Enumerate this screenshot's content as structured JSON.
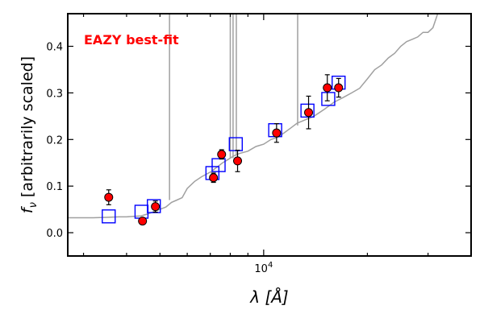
{
  "chart_data": {
    "type": "scatter",
    "title": "",
    "annotation": {
      "text": "EAZY best-fit",
      "color": "#ff0000"
    },
    "xlabel": "λ [Å]",
    "ylabel": "f_ν [arbitrarily scaled]",
    "x_scale": "log",
    "xlim": [
      2700,
      40000
    ],
    "ylim": [
      -0.05,
      0.47
    ],
    "x_tick_labels": [
      {
        "value": 10000,
        "label": "10^4"
      }
    ],
    "y_ticks": [
      0.0,
      0.1,
      0.2,
      0.3,
      0.4
    ],
    "y_tick_labels": [
      "0.0",
      "0.1",
      "0.2",
      "0.3",
      "0.4"
    ],
    "grid": false,
    "colors": {
      "sed": "#a0a0a0",
      "model": "#0000ff",
      "observed": "#ff0000",
      "axes": "#000000"
    },
    "series": [
      {
        "name": "",
        "kind": "line",
        "description_color": "gray",
        "x": [
          2700,
          3200,
          3500,
          3800,
          4000,
          4200,
          4400,
          4600,
          4800,
          5000,
          5200,
          5300,
          5400,
          5600,
          5800,
          6000,
          6300,
          6600,
          7000,
          7300,
          7600,
          7800,
          8000,
          8200,
          8500,
          9000,
          9500,
          10000,
          10500,
          11000,
          11500,
          12000,
          12500,
          13000,
          14000,
          15000,
          16000,
          17000,
          18000,
          19000,
          20000,
          21000,
          22000,
          23000,
          24000,
          25000,
          26000,
          27000,
          28000,
          29000,
          30000,
          31000,
          32000
        ],
        "y": [
          0.032,
          0.032,
          0.033,
          0.034,
          0.034,
          0.035,
          0.036,
          0.04,
          0.045,
          0.05,
          0.055,
          0.06,
          0.065,
          0.07,
          0.075,
          0.095,
          0.11,
          0.12,
          0.13,
          0.14,
          0.15,
          0.155,
          0.16,
          0.165,
          0.17,
          0.175,
          0.185,
          0.19,
          0.2,
          0.205,
          0.215,
          0.225,
          0.235,
          0.24,
          0.25,
          0.265,
          0.28,
          0.29,
          0.3,
          0.31,
          0.33,
          0.35,
          0.36,
          0.375,
          0.385,
          0.4,
          0.41,
          0.415,
          0.42,
          0.43,
          0.43,
          0.44,
          0.47
        ]
      },
      {
        "name": "",
        "kind": "spikes",
        "description_color": "gray",
        "x": [
          5330,
          8000,
          8150,
          8330,
          12550
        ],
        "y_base": [
          0.07,
          0.16,
          0.16,
          0.165,
          0.23
        ]
      },
      {
        "name": "",
        "kind": "open-squares",
        "description_color": "blue",
        "x": [
          3550,
          4420,
          4800,
          7100,
          7400,
          8300,
          10800,
          13400,
          15400,
          16500
        ],
        "y": [
          0.035,
          0.045,
          0.057,
          0.128,
          0.145,
          0.19,
          0.22,
          0.262,
          0.287,
          0.322
        ]
      },
      {
        "name": "",
        "kind": "points-with-errors",
        "description_color": "red",
        "x": [
          3550,
          4450,
          4850,
          7150,
          7550,
          8400,
          10900,
          13500,
          15300,
          16500
        ],
        "y": [
          0.076,
          0.025,
          0.056,
          0.118,
          0.168,
          0.154,
          0.214,
          0.258,
          0.311,
          0.311
        ],
        "yerr": [
          0.016,
          0.006,
          0.012,
          0.01,
          0.01,
          0.023,
          0.02,
          0.035,
          0.028,
          0.02
        ]
      }
    ]
  }
}
